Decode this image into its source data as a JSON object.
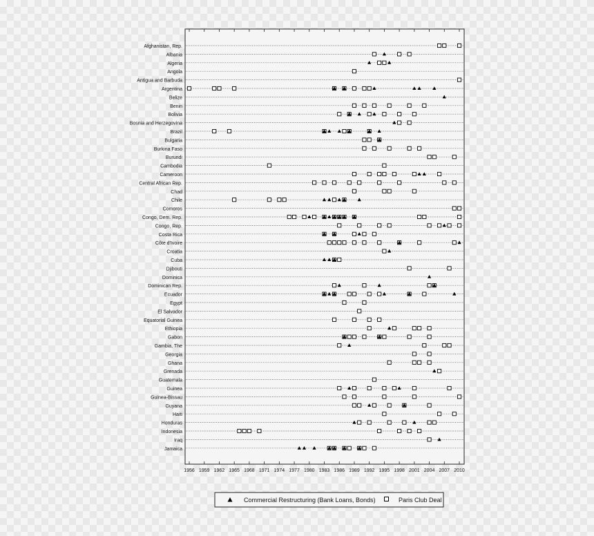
{
  "chart_data": {
    "type": "scatter",
    "x_ticks": [
      1956,
      1959,
      1962,
      1965,
      1968,
      1971,
      1974,
      1977,
      1980,
      1983,
      1986,
      1989,
      1992,
      1995,
      1998,
      2001,
      2004,
      2007,
      2010
    ],
    "xlim": [
      1956,
      2010
    ],
    "grid": "dotted horizontal line per country",
    "legend_position": "bottom-center",
    "series": [
      {
        "name": "Commercial Restructuring (Bank Loans, Bonds)",
        "marker": "triangle",
        "color": "#000000"
      },
      {
        "name": "Paris Club Deal",
        "marker": "square",
        "color": "#000000"
      }
    ],
    "rows": [
      {
        "country": "Afghanistan, Rep.",
        "commercial": [],
        "paris": [
          2006,
          2007,
          2010
        ]
      },
      {
        "country": "Albania",
        "commercial": [
          1995
        ],
        "paris": [
          1993,
          1998,
          2000
        ]
      },
      {
        "country": "Algeria",
        "commercial": [
          1992,
          1996
        ],
        "paris": [
          1994,
          1995
        ]
      },
      {
        "country": "Angola",
        "commercial": [],
        "paris": [
          1989
        ]
      },
      {
        "country": "Antigua and Barbuda",
        "commercial": [],
        "paris": [
          2010
        ]
      },
      {
        "country": "Argentina",
        "commercial": [
          1985,
          1987,
          1993,
          2001,
          2002,
          2005
        ],
        "paris": [
          1956,
          1961,
          1962,
          1965,
          1985,
          1987,
          1989,
          1991,
          1992
        ]
      },
      {
        "country": "Belize",
        "commercial": [
          2007
        ],
        "paris": []
      },
      {
        "country": "Benin",
        "commercial": [],
        "paris": [
          1989,
          1991,
          1993,
          1996,
          2000,
          2003
        ]
      },
      {
        "country": "Bolivia",
        "commercial": [
          1988,
          1990,
          1993
        ],
        "paris": [
          1986,
          1988,
          1992,
          1995,
          1998,
          2001
        ]
      },
      {
        "country": "Bosnia and Herzegovina",
        "commercial": [
          1997
        ],
        "paris": [
          1998,
          2000
        ]
      },
      {
        "country": "Brazil",
        "commercial": [
          1983,
          1984,
          1986,
          1988,
          1992,
          1994
        ],
        "paris": [
          1961,
          1964,
          1983,
          1987,
          1988,
          1992
        ]
      },
      {
        "country": "Bulgaria",
        "commercial": [
          1994
        ],
        "paris": [
          1991,
          1992,
          1994
        ]
      },
      {
        "country": "Burkina Faso",
        "commercial": [],
        "paris": [
          1991,
          1993,
          1996,
          2000,
          2002
        ]
      },
      {
        "country": "Burundi",
        "commercial": [],
        "paris": [
          2004,
          2005,
          2009
        ]
      },
      {
        "country": "Cambodia",
        "commercial": [],
        "paris": [
          1972,
          1995
        ]
      },
      {
        "country": "Cameroon",
        "commercial": [
          2002,
          2003
        ],
        "paris": [
          1989,
          1992,
          1994,
          1995,
          1997,
          2001,
          2006
        ]
      },
      {
        "country": "Central African Rep.",
        "commercial": [],
        "paris": [
          1981,
          1983,
          1985,
          1988,
          1990,
          1994,
          1998,
          2007,
          2009
        ]
      },
      {
        "country": "Chad",
        "commercial": [],
        "paris": [
          1989,
          1995,
          1996,
          2001
        ]
      },
      {
        "country": "Chile",
        "commercial": [
          1983,
          1984,
          1986,
          1987,
          1990
        ],
        "paris": [
          1965,
          1972,
          1974,
          1975,
          1985,
          1987
        ]
      },
      {
        "country": "Comoros",
        "commercial": [],
        "paris": [
          2009,
          2010
        ]
      },
      {
        "country": "Congo, Dem. Rep.",
        "commercial": [
          1980,
          1983,
          1984,
          1985,
          1986,
          1987,
          1989
        ],
        "paris": [
          1976,
          1977,
          1979,
          1981,
          1983,
          1985,
          1986,
          1987,
          1989,
          2002,
          2003,
          2010
        ]
      },
      {
        "country": "Congo, Rep.",
        "commercial": [
          2007
        ],
        "paris": [
          1986,
          1990,
          1994,
          1996,
          2004,
          2006,
          2008,
          2010
        ]
      },
      {
        "country": "Costa Rica",
        "commercial": [
          1983,
          1985,
          1990
        ],
        "paris": [
          1983,
          1985,
          1989,
          1991,
          1993
        ]
      },
      {
        "country": "Côte d'Ivoire",
        "commercial": [
          1998,
          2010
        ],
        "paris": [
          1984,
          1985,
          1986,
          1987,
          1989,
          1991,
          1994,
          1998,
          2002,
          2009
        ]
      },
      {
        "country": "Croatia",
        "commercial": [
          1996
        ],
        "paris": [
          1995
        ]
      },
      {
        "country": "Cuba",
        "commercial": [
          1983,
          1984,
          1985
        ],
        "paris": [
          1985,
          1986
        ]
      },
      {
        "country": "Djibouti",
        "commercial": [],
        "paris": [
          2000,
          2008
        ]
      },
      {
        "country": "Dominica",
        "commercial": [
          2004
        ],
        "paris": []
      },
      {
        "country": "Dominican Rep.",
        "commercial": [
          1986,
          1994,
          2005
        ],
        "paris": [
          1985,
          1991,
          2004,
          2005
        ]
      },
      {
        "country": "Ecuador",
        "commercial": [
          1983,
          1984,
          1985,
          1995,
          2000,
          2009
        ],
        "paris": [
          1983,
          1985,
          1988,
          1989,
          1992,
          1994,
          2000,
          2003
        ]
      },
      {
        "country": "Egypt",
        "commercial": [],
        "paris": [
          1987,
          1991
        ]
      },
      {
        "country": "El Salvador",
        "commercial": [],
        "paris": [
          1990
        ]
      },
      {
        "country": "Equatorial Guinea",
        "commercial": [],
        "paris": [
          1985,
          1989,
          1992,
          1994
        ]
      },
      {
        "country": "Ethiopia",
        "commercial": [
          1996
        ],
        "paris": [
          1992,
          1997,
          2001,
          2002,
          2004
        ]
      },
      {
        "country": "Gabon",
        "commercial": [
          1987,
          1994
        ],
        "paris": [
          1987,
          1988,
          1989,
          1991,
          1994,
          1995,
          2000,
          2004
        ]
      },
      {
        "country": "Gambia, The",
        "commercial": [
          1988
        ],
        "paris": [
          1986,
          2003,
          2007,
          2008
        ]
      },
      {
        "country": "Georgia",
        "commercial": [],
        "paris": [
          2001,
          2004
        ]
      },
      {
        "country": "Ghana",
        "commercial": [],
        "paris": [
          1996,
          2001,
          2002,
          2004
        ]
      },
      {
        "country": "Grenada",
        "commercial": [
          2005
        ],
        "paris": [
          2006
        ]
      },
      {
        "country": "Guatemala",
        "commercial": [],
        "paris": [
          1993
        ]
      },
      {
        "country": "Guinea",
        "commercial": [
          1988,
          1998
        ],
        "paris": [
          1986,
          1989,
          1992,
          1995,
          1997,
          2001,
          2008
        ]
      },
      {
        "country": "Guinea-Bissau",
        "commercial": [],
        "paris": [
          1987,
          1989,
          1995,
          2001,
          2010
        ]
      },
      {
        "country": "Guyana",
        "commercial": [
          1992,
          1999
        ],
        "paris": [
          1989,
          1990,
          1993,
          1996,
          1999,
          2004
        ]
      },
      {
        "country": "Haiti",
        "commercial": [],
        "paris": [
          1995,
          2006,
          2009
        ]
      },
      {
        "country": "Honduras",
        "commercial": [
          1989,
          2001
        ],
        "paris": [
          1990,
          1992,
          1996,
          1999,
          2004,
          2005
        ]
      },
      {
        "country": "Indonesia",
        "commercial": [],
        "paris": [
          1966,
          1967,
          1968,
          1970,
          1994,
          1998,
          2000,
          2002
        ]
      },
      {
        "country": "Iraq",
        "commercial": [
          2006
        ],
        "paris": [
          2004
        ]
      },
      {
        "country": "Jamaica",
        "commercial": [
          1978,
          1979,
          1981,
          1984,
          1985,
          1987,
          1990
        ],
        "paris": [
          1984,
          1985,
          1987,
          1988,
          1990,
          1991,
          1993
        ]
      }
    ]
  }
}
